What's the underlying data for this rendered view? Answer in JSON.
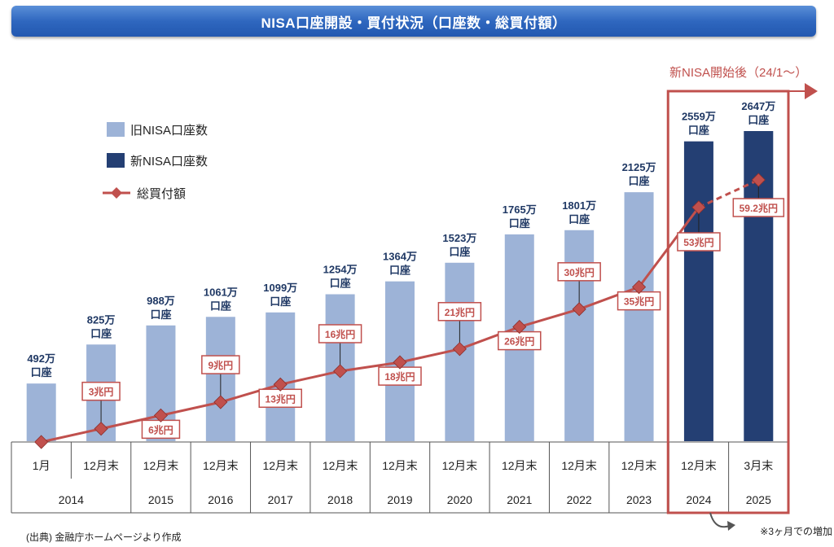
{
  "header": {
    "title": "NISA口座開設・買付状況（口座数・総買付額）"
  },
  "chart_data": {
    "type": "bar",
    "title": "NISA口座開設・買付状況（口座数・総買付額）",
    "categories": [
      {
        "top": "1月",
        "bottom": "2014"
      },
      {
        "top": "12月末",
        "bottom": "2014"
      },
      {
        "top": "12月末",
        "bottom": "2015"
      },
      {
        "top": "12月末",
        "bottom": "2016"
      },
      {
        "top": "12月末",
        "bottom": "2017"
      },
      {
        "top": "12月末",
        "bottom": "2018"
      },
      {
        "top": "12月末",
        "bottom": "2019"
      },
      {
        "top": "12月末",
        "bottom": "2020"
      },
      {
        "top": "12月末",
        "bottom": "2021"
      },
      {
        "top": "12月末",
        "bottom": "2022"
      },
      {
        "top": "12月末",
        "bottom": "2023"
      },
      {
        "top": "12月末",
        "bottom": "2024"
      },
      {
        "top": "3月末",
        "bottom": "2025"
      }
    ],
    "year_groups": [
      {
        "label": "2014",
        "span": 2
      },
      {
        "label": "2015",
        "span": 1
      },
      {
        "label": "2016",
        "span": 1
      },
      {
        "label": "2017",
        "span": 1
      },
      {
        "label": "2018",
        "span": 1
      },
      {
        "label": "2019",
        "span": 1
      },
      {
        "label": "2020",
        "span": 1
      },
      {
        "label": "2021",
        "span": 1
      },
      {
        "label": "2022",
        "span": 1
      },
      {
        "label": "2023",
        "span": 1
      },
      {
        "label": "2024",
        "span": 1
      },
      {
        "label": "2025",
        "span": 1
      }
    ],
    "bar_unit": "口座",
    "series": [
      {
        "name": "旧NISA口座数",
        "kind": "bar",
        "color": "#9db3d7",
        "values": [
          492,
          825,
          988,
          1061,
          1099,
          1254,
          1364,
          1523,
          1765,
          1801,
          2125,
          null,
          null
        ],
        "labels": [
          "492万",
          "825万",
          "988万",
          "1061万",
          "1099万",
          "1254万",
          "1364万",
          "1523万",
          "1765万",
          "1801万",
          "2125万",
          null,
          null
        ]
      },
      {
        "name": "新NISA口座数",
        "kind": "bar",
        "color": "#243f73",
        "values": [
          null,
          null,
          null,
          null,
          null,
          null,
          null,
          null,
          null,
          null,
          null,
          2559,
          2647
        ],
        "labels": [
          null,
          null,
          null,
          null,
          null,
          null,
          null,
          null,
          null,
          null,
          null,
          "2559万",
          "2647万"
        ]
      },
      {
        "name": "総買付額",
        "kind": "line",
        "color": "#c0504d",
        "marker": "diamond",
        "values": [
          0,
          3,
          6,
          9,
          13,
          16,
          18,
          21,
          26,
          30,
          35,
          53,
          59.2
        ],
        "labels": [
          null,
          "3兆円",
          "6兆円",
          "9兆円",
          "13兆円",
          "16兆円",
          "18兆円",
          "21兆円",
          "26兆円",
          "30兆円",
          "35兆円",
          "53兆円",
          "59.2兆円"
        ],
        "dashed_last_segment": true
      }
    ],
    "legend_placement": "top-left",
    "grid": false,
    "annotations": {
      "new_nisa": "新NISA開始後（24/1～）",
      "note": "※3ヶ月での増加"
    },
    "source": "(出典) 金融庁ホームページより作成"
  }
}
